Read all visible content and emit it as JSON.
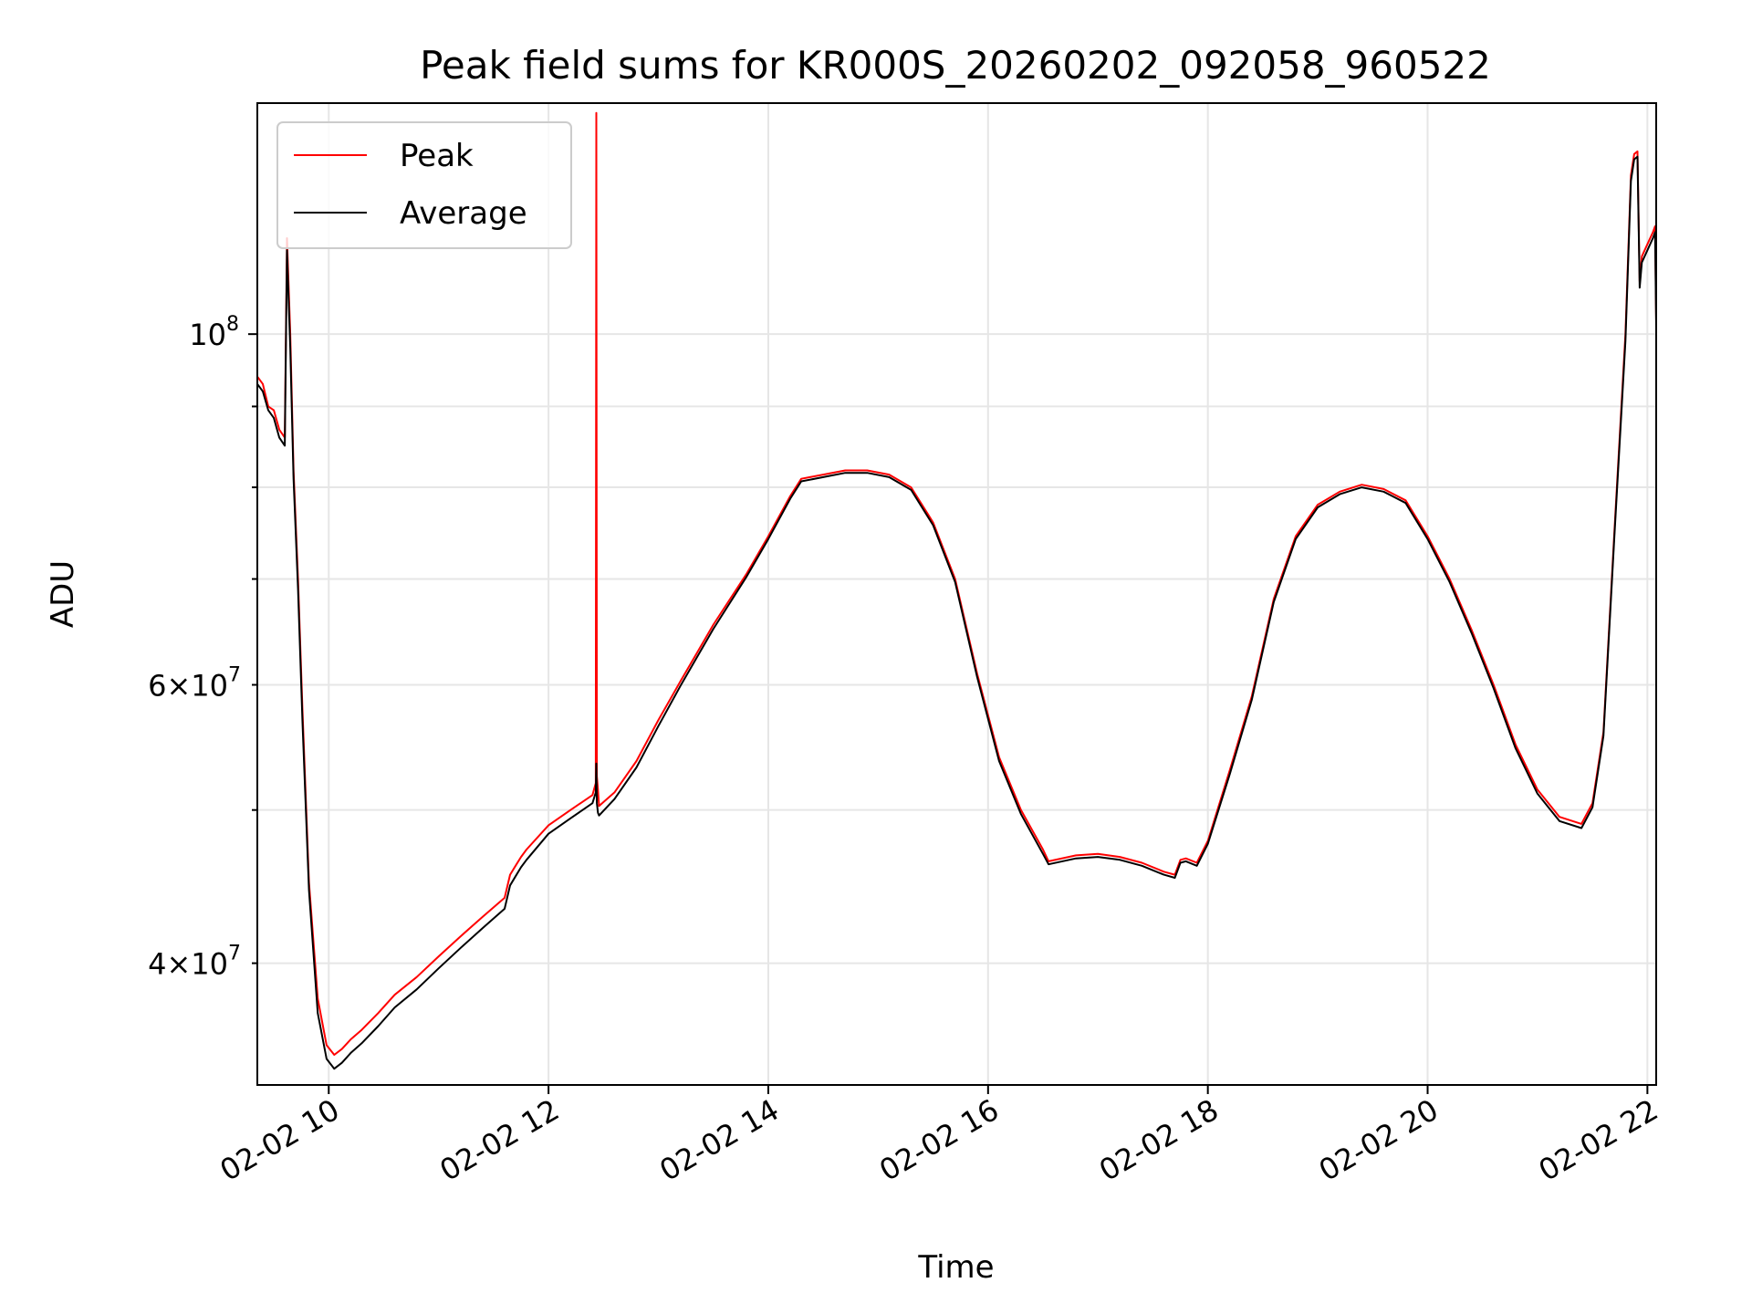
{
  "chart_data": {
    "type": "line",
    "title": "Peak field sums for KR000S_20260202_092058_960522",
    "xlabel": "Time",
    "ylabel": "ADU",
    "x_unit": "hour of day 2026-02-02",
    "xlim": [
      9.35,
      22.08
    ],
    "ylim": [
      33500000,
      140000000
    ],
    "yscale": "log",
    "grid": true,
    "legend_position": "top-left",
    "x_ticks": [
      {
        "value": 10,
        "label": "02-02 10"
      },
      {
        "value": 12,
        "label": "02-02 12"
      },
      {
        "value": 14,
        "label": "02-02 14"
      },
      {
        "value": 16,
        "label": "02-02 16"
      },
      {
        "value": 18,
        "label": "02-02 18"
      },
      {
        "value": 20,
        "label": "02-02 20"
      },
      {
        "value": 22,
        "label": "02-02 22"
      }
    ],
    "y_major_ticks": [
      {
        "value": 100000000,
        "base": "10",
        "exp": "8"
      }
    ],
    "y_minor_ticks": [
      {
        "value": 40000000,
        "mant": "4",
        "base": "10",
        "exp": "7",
        "labeled": true
      },
      {
        "value": 50000000,
        "labeled": false
      },
      {
        "value": 60000000,
        "mant": "6",
        "base": "10",
        "exp": "7",
        "labeled": true
      },
      {
        "value": 70000000,
        "labeled": false
      },
      {
        "value": 80000000,
        "labeled": false
      },
      {
        "value": 90000000,
        "labeled": false
      }
    ],
    "series": [
      {
        "name": "Peak",
        "color": "#ff0000",
        "x": [
          9.35,
          9.4,
          9.45,
          9.5,
          9.55,
          9.6,
          9.62,
          9.65,
          9.68,
          9.72,
          9.76,
          9.82,
          9.9,
          9.98,
          10.05,
          10.12,
          10.2,
          10.3,
          10.45,
          10.6,
          10.8,
          11.0,
          11.2,
          11.4,
          11.6,
          11.65,
          11.7,
          11.75,
          11.8,
          12.0,
          12.2,
          12.4,
          12.43,
          12.435,
          12.44,
          12.45,
          12.46,
          12.6,
          12.8,
          13.0,
          13.2,
          13.5,
          13.8,
          14.0,
          14.2,
          14.3,
          14.5,
          14.7,
          14.9,
          15.1,
          15.3,
          15.5,
          15.7,
          15.9,
          16.1,
          16.3,
          16.5,
          16.55,
          16.8,
          17.0,
          17.2,
          17.4,
          17.6,
          17.7,
          17.75,
          17.8,
          17.9,
          18.0,
          18.2,
          18.4,
          18.6,
          18.8,
          19.0,
          19.2,
          19.4,
          19.6,
          19.8,
          20.0,
          20.2,
          20.4,
          20.6,
          20.8,
          21.0,
          21.2,
          21.4,
          21.5,
          21.6,
          21.7,
          21.8,
          21.85,
          21.88,
          21.91,
          21.93,
          21.95,
          22.0,
          22.05,
          22.07,
          22.08
        ],
        "y": [
          94000000,
          93000000,
          90000000,
          89500000,
          87000000,
          86000000,
          115000000,
          100000000,
          82000000,
          70000000,
          58000000,
          45000000,
          38000000,
          35500000,
          35000000,
          35300000,
          35800000,
          36300000,
          37200000,
          38200000,
          39200000,
          40400000,
          41600000,
          42800000,
          44000000,
          45500000,
          46100000,
          46700000,
          47200000,
          48900000,
          50000000,
          51100000,
          52000000,
          138000000,
          52500000,
          51500000,
          50300000,
          51300000,
          53700000,
          57000000,
          60300000,
          65500000,
          70500000,
          74500000,
          79000000,
          81000000,
          81500000,
          82000000,
          82000000,
          81500000,
          80000000,
          76000000,
          70000000,
          61000000,
          54000000,
          50000000,
          47200000,
          46400000,
          46800000,
          46900000,
          46700000,
          46300000,
          45700000,
          45500000,
          46500000,
          46600000,
          46300000,
          47800000,
          53000000,
          59000000,
          68000000,
          74500000,
          78000000,
          79500000,
          80300000,
          79800000,
          78500000,
          74500000,
          70000000,
          65000000,
          60000000,
          55000000,
          51500000,
          49500000,
          49000000,
          50500000,
          56000000,
          75000000,
          100000000,
          126000000,
          130000000,
          130500000,
          108000000,
          112000000,
          114000000,
          116000000,
          117000000,
          102000000
        ]
      },
      {
        "name": "Average",
        "color": "#000000",
        "x": [
          9.35,
          9.4,
          9.45,
          9.5,
          9.55,
          9.6,
          9.62,
          9.65,
          9.68,
          9.72,
          9.76,
          9.82,
          9.9,
          9.98,
          10.05,
          10.12,
          10.2,
          10.3,
          10.45,
          10.6,
          10.8,
          11.0,
          11.2,
          11.4,
          11.6,
          11.65,
          11.7,
          11.75,
          11.8,
          12.0,
          12.2,
          12.4,
          12.43,
          12.435,
          12.44,
          12.45,
          12.46,
          12.6,
          12.8,
          13.0,
          13.2,
          13.5,
          13.8,
          14.0,
          14.2,
          14.3,
          14.5,
          14.7,
          14.9,
          15.1,
          15.3,
          15.5,
          15.7,
          15.9,
          16.1,
          16.3,
          16.5,
          16.55,
          16.8,
          17.0,
          17.2,
          17.4,
          17.6,
          17.7,
          17.75,
          17.8,
          17.9,
          18.0,
          18.2,
          18.4,
          18.6,
          18.8,
          19.0,
          19.2,
          19.4,
          19.6,
          19.8,
          20.0,
          20.2,
          20.4,
          20.6,
          20.8,
          21.0,
          21.2,
          21.4,
          21.5,
          21.6,
          21.7,
          21.8,
          21.85,
          21.88,
          21.91,
          21.93,
          21.95,
          22.0,
          22.05,
          22.07,
          22.08
        ],
        "y": [
          93000000,
          92000000,
          89500000,
          88500000,
          86000000,
          85000000,
          113000000,
          98000000,
          81000000,
          69000000,
          57000000,
          44500000,
          37200000,
          34800000,
          34300000,
          34600000,
          35100000,
          35600000,
          36500000,
          37500000,
          38500000,
          39700000,
          40900000,
          42100000,
          43300000,
          44800000,
          45400000,
          46000000,
          46500000,
          48300000,
          49400000,
          50500000,
          51300000,
          53500000,
          50500000,
          49800000,
          49600000,
          50800000,
          53200000,
          56500000,
          59900000,
          65100000,
          70200000,
          74200000,
          78700000,
          80700000,
          81200000,
          81700000,
          81700000,
          81200000,
          79700000,
          75700000,
          69700000,
          60700000,
          53700000,
          49700000,
          46900000,
          46200000,
          46600000,
          46700000,
          46500000,
          46100000,
          45500000,
          45300000,
          46300000,
          46400000,
          46100000,
          47600000,
          52700000,
          58700000,
          67700000,
          74200000,
          77700000,
          79200000,
          80000000,
          79500000,
          78200000,
          74200000,
          69700000,
          64700000,
          59700000,
          54700000,
          51200000,
          49200000,
          48700000,
          50200000,
          55700000,
          74500000,
          99000000,
          125000000,
          129000000,
          129500000,
          107000000,
          111000000,
          113000000,
          115000000,
          116000000,
          101000000
        ]
      }
    ]
  }
}
